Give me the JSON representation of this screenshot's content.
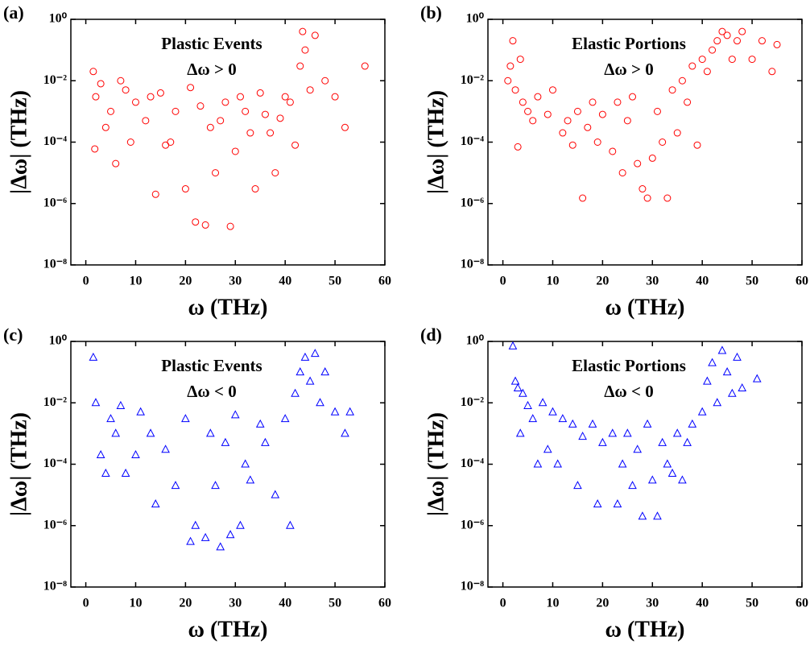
{
  "chart_data": [
    {
      "type": "scatter",
      "panel_label": "(a)",
      "annotations": [
        "Plastic Events",
        "Δω > 0"
      ],
      "xlabel": "ω (THz)",
      "ylabel": "|Δω| (THz)",
      "xlim": [
        -3,
        60
      ],
      "ylim": [
        1e-08,
        1
      ],
      "log_y": true,
      "xticks": [
        0,
        10,
        20,
        30,
        40,
        50,
        60
      ],
      "yticks": [
        {
          "value": 1e-08,
          "label": "10⁻⁸"
        },
        {
          "value": 1e-06,
          "label": "10⁻⁶"
        },
        {
          "value": 0.0001,
          "label": "10⁻⁴"
        },
        {
          "value": 0.01,
          "label": "10⁻²"
        },
        {
          "value": 1,
          "label": "10⁰"
        }
      ],
      "color": "#ff0000",
      "marker": "circle",
      "x": [
        1.5,
        1.8,
        2,
        3,
        4,
        5,
        6,
        7,
        8,
        9,
        10,
        12,
        13,
        14,
        15,
        16,
        17,
        18,
        20,
        21,
        22,
        23,
        24,
        25,
        26,
        27,
        28,
        29,
        30,
        31,
        32,
        33,
        34,
        35,
        36,
        37,
        38,
        39,
        40,
        41,
        42,
        43,
        43.5,
        44,
        45,
        46,
        48,
        50,
        52,
        56
      ],
      "values": [
        0.02,
        6e-05,
        0.003,
        0.008,
        0.0003,
        0.001,
        2e-05,
        0.01,
        0.005,
        0.0001,
        0.002,
        0.0005,
        0.003,
        2e-06,
        0.004,
        8e-05,
        0.0001,
        0.001,
        3e-06,
        0.006,
        2.5e-07,
        0.0015,
        2e-07,
        0.0003,
        1e-05,
        0.0005,
        0.002,
        1.8e-07,
        5e-05,
        0.003,
        0.001,
        0.0002,
        3e-06,
        0.004,
        0.0008,
        0.0002,
        1e-05,
        0.0006,
        0.003,
        0.002,
        8e-05,
        0.03,
        0.4,
        0.1,
        0.005,
        0.3,
        0.01,
        0.003,
        0.0003,
        0.03
      ]
    },
    {
      "type": "scatter",
      "panel_label": "(b)",
      "annotations": [
        "Elastic Portions",
        "Δω > 0"
      ],
      "xlabel": "ω (THz)",
      "ylabel": "|Δω| (THz)",
      "xlim": [
        -3,
        60
      ],
      "ylim": [
        1e-08,
        1
      ],
      "log_y": true,
      "xticks": [
        0,
        10,
        20,
        30,
        40,
        50,
        60
      ],
      "yticks": [
        {
          "value": 1e-08,
          "label": "10⁻⁸"
        },
        {
          "value": 1e-06,
          "label": "10⁻⁶"
        },
        {
          "value": 0.0001,
          "label": "10⁻⁴"
        },
        {
          "value": 0.01,
          "label": "10⁻²"
        },
        {
          "value": 1,
          "label": "10⁰"
        }
      ],
      "color": "#ff0000",
      "marker": "circle",
      "x": [
        1,
        1.5,
        2,
        2.5,
        3,
        3.5,
        4,
        5,
        6,
        7,
        9,
        10,
        12,
        13,
        14,
        15,
        16,
        17,
        18,
        19,
        20,
        22,
        23,
        24,
        25,
        26,
        27,
        28,
        29,
        30,
        31,
        32,
        33,
        34,
        35,
        36,
        37,
        38,
        39,
        40,
        41,
        42,
        43,
        44,
        45,
        46,
        47,
        48,
        50,
        52,
        54,
        55
      ],
      "values": [
        0.01,
        0.03,
        0.2,
        0.005,
        7e-05,
        0.05,
        0.002,
        0.001,
        0.0005,
        0.003,
        0.0008,
        0.005,
        0.0002,
        0.0005,
        8e-05,
        0.001,
        1.5e-06,
        0.0003,
        0.002,
        0.0001,
        0.0008,
        5e-05,
        0.002,
        1e-05,
        0.0005,
        0.003,
        2e-05,
        3e-06,
        1.5e-06,
        3e-05,
        0.001,
        0.0001,
        1.5e-06,
        0.005,
        0.0002,
        0.01,
        0.002,
        0.03,
        8e-05,
        0.05,
        0.02,
        0.1,
        0.2,
        0.4,
        0.3,
        0.05,
        0.2,
        0.4,
        0.05,
        0.2,
        0.02,
        0.15
      ]
    },
    {
      "type": "scatter",
      "panel_label": "(c)",
      "annotations": [
        "Plastic Events",
        "Δω < 0"
      ],
      "xlabel": "ω (THz)",
      "ylabel": "|Δω| (THz)",
      "xlim": [
        -3,
        60
      ],
      "ylim": [
        1e-08,
        1
      ],
      "log_y": true,
      "xticks": [
        0,
        10,
        20,
        30,
        40,
        50,
        60
      ],
      "yticks": [
        {
          "value": 1e-08,
          "label": "10⁻⁸"
        },
        {
          "value": 1e-06,
          "label": "10⁻⁶"
        },
        {
          "value": 0.0001,
          "label": "10⁻⁴"
        },
        {
          "value": 0.01,
          "label": "10⁻²"
        },
        {
          "value": 1,
          "label": "10⁰"
        }
      ],
      "color": "#0000ff",
      "marker": "triangle",
      "x": [
        1.5,
        2,
        3,
        4,
        5,
        6,
        7,
        8,
        10,
        11,
        13,
        14,
        16,
        18,
        20,
        21,
        22,
        24,
        25,
        26,
        27,
        28,
        29,
        30,
        31,
        32,
        33,
        35,
        36,
        38,
        40,
        41,
        42,
        43,
        44,
        45,
        46,
        47,
        48,
        50,
        52,
        53
      ],
      "values": [
        0.3,
        0.01,
        0.0002,
        5e-05,
        0.003,
        0.001,
        0.008,
        5e-05,
        0.0002,
        0.005,
        0.001,
        5e-06,
        0.0003,
        2e-05,
        0.003,
        3e-07,
        1e-06,
        4e-07,
        0.001,
        2e-05,
        2e-07,
        0.0005,
        5e-07,
        0.004,
        1e-06,
        0.0001,
        3e-05,
        0.002,
        0.0005,
        1e-05,
        0.003,
        1e-06,
        0.02,
        0.1,
        0.3,
        0.05,
        0.4,
        0.01,
        0.1,
        0.005,
        0.001,
        0.005
      ]
    },
    {
      "type": "scatter",
      "panel_label": "(d)",
      "annotations": [
        "Elastic Portions",
        "Δω < 0"
      ],
      "xlabel": "ω (THz)",
      "ylabel": "|Δω| (THz)",
      "xlim": [
        -3,
        60
      ],
      "ylim": [
        1e-08,
        1
      ],
      "log_y": true,
      "xticks": [
        0,
        10,
        20,
        30,
        40,
        50,
        60
      ],
      "yticks": [
        {
          "value": 1e-08,
          "label": "10⁻⁸"
        },
        {
          "value": 1e-06,
          "label": "10⁻⁶"
        },
        {
          "value": 0.0001,
          "label": "10⁻⁴"
        },
        {
          "value": 0.01,
          "label": "10⁻²"
        },
        {
          "value": 1,
          "label": "10⁰"
        }
      ],
      "color": "#0000ff",
      "marker": "triangle",
      "x": [
        2,
        2.5,
        3,
        3.5,
        4,
        5,
        6,
        7,
        8,
        9,
        10,
        11,
        12,
        14,
        15,
        16,
        18,
        19,
        20,
        22,
        23,
        24,
        25,
        26,
        27,
        28,
        29,
        30,
        31,
        32,
        33,
        34,
        35,
        36,
        37,
        38,
        40,
        41,
        42,
        43,
        44,
        45,
        46,
        47,
        48,
        51
      ],
      "values": [
        0.7,
        0.05,
        0.03,
        0.001,
        0.02,
        0.008,
        0.003,
        0.0001,
        0.01,
        0.0003,
        0.005,
        0.0001,
        0.003,
        0.002,
        2e-05,
        0.0008,
        0.002,
        5e-06,
        0.0005,
        0.001,
        5e-06,
        0.0001,
        0.001,
        2e-05,
        0.0003,
        2e-06,
        0.002,
        3e-05,
        2e-06,
        0.0005,
        0.0001,
        5e-05,
        0.001,
        3e-05,
        0.0005,
        0.002,
        0.005,
        0.05,
        0.2,
        0.01,
        0.5,
        0.1,
        0.02,
        0.3,
        0.03,
        0.06
      ]
    }
  ]
}
